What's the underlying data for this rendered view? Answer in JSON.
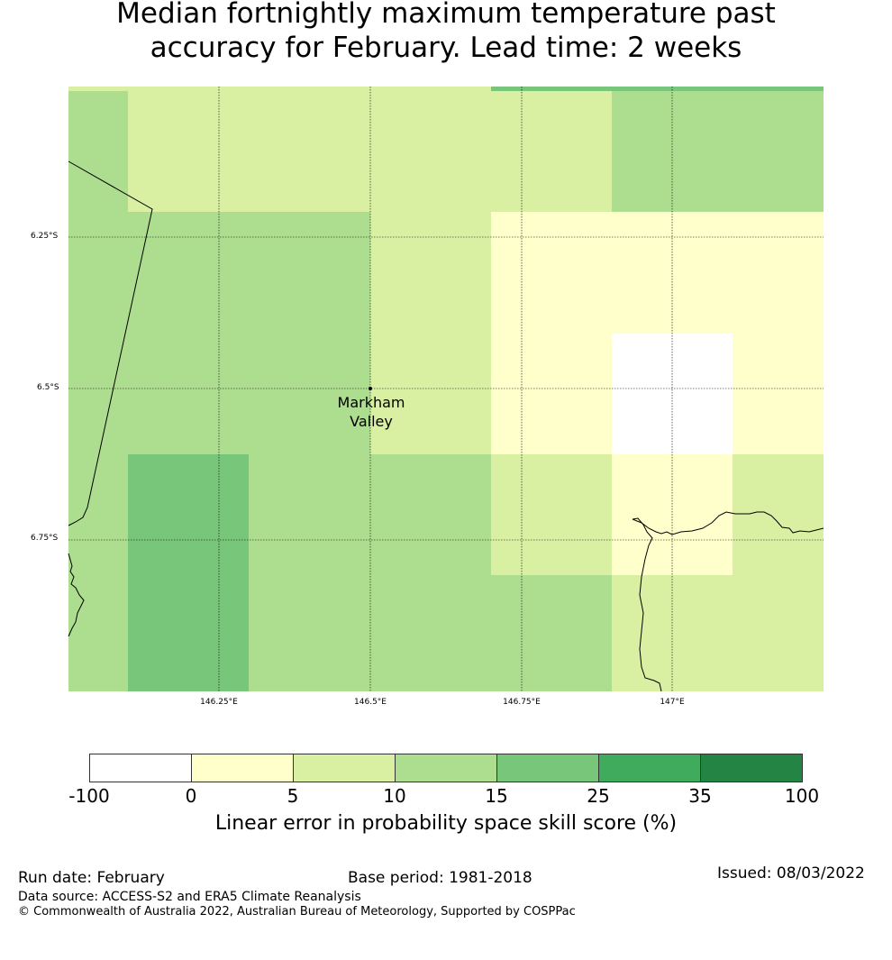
{
  "title": {
    "line1": "Median fortnightly maximum temperature past",
    "line2": "accuracy for February. Lead time: 2 weeks"
  },
  "map": {
    "lat_labels": [
      "6.25°S",
      "6.5°S",
      "6.75°S"
    ],
    "lon_labels": [
      "146.25°E",
      "146.5°E",
      "146.75°E",
      "147°E"
    ],
    "place": {
      "name_line1": "Markham",
      "name_line2": "Valley"
    },
    "skill_categories": [
      {
        "range": "-100 to 0",
        "color": "#ffffff"
      },
      {
        "range": "0 to 5",
        "color": "#ffffcc"
      },
      {
        "range": "5 to 10",
        "color": "#d9f0a3"
      },
      {
        "range": "10 to 15",
        "color": "#addd8e"
      },
      {
        "range": "15 to 25",
        "color": "#78c679"
      },
      {
        "range": "25 to 35",
        "color": "#41ab5d"
      },
      {
        "range": "35 to 100",
        "color": "#238443"
      }
    ]
  },
  "colorbar": {
    "ticks": [
      "-100",
      "0",
      "5",
      "10",
      "15",
      "25",
      "35",
      "100"
    ],
    "colors": [
      "#ffffff",
      "#ffffcc",
      "#d9f0a3",
      "#addd8e",
      "#78c679",
      "#41ab5d",
      "#238443"
    ],
    "label": "Linear error in probability space skill score (%)"
  },
  "footer": {
    "run_date": "Run date: February",
    "base_period": "Base period: 1981-2018",
    "issued": "Issued: 08/03/2022",
    "data_source": "Data source: ACCESS-S2 and ERA5 Climate Reanalysis",
    "copyright": "© Commonwealth of Australia 2022, Australian Bureau of Meteorology, Supported by COSPPac"
  }
}
